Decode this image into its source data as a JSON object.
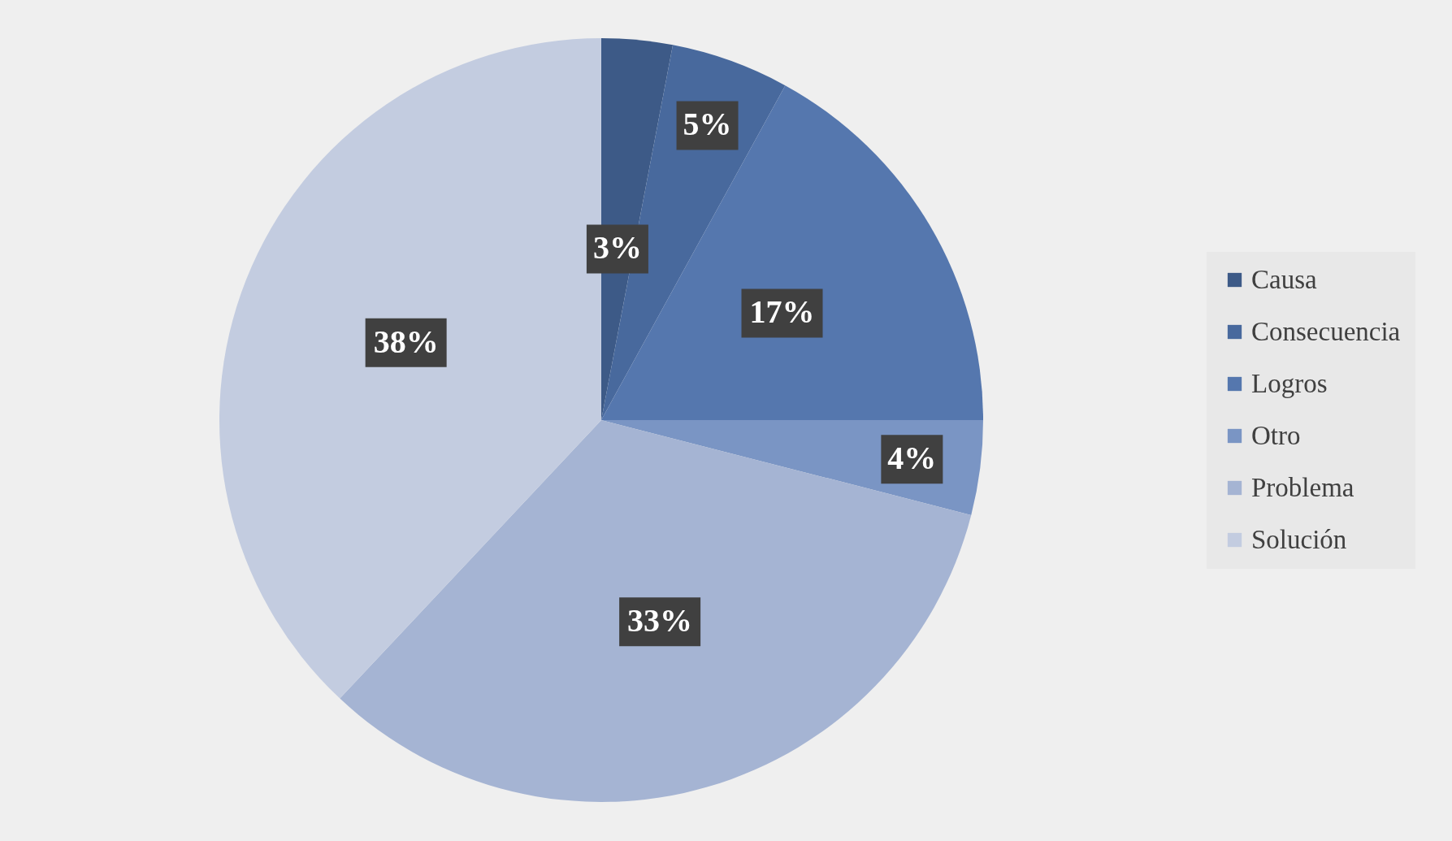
{
  "chart_data": {
    "type": "pie",
    "categories": [
      "Causa",
      "Consecuencia",
      "Logros",
      "Otro",
      "Problema",
      "Solución"
    ],
    "values": [
      3,
      5,
      17,
      4,
      33,
      38
    ],
    "value_labels": [
      "3%",
      "5%",
      "17%",
      "4%",
      "33%",
      "38%"
    ],
    "colors": [
      "#3d5a87",
      "#48699d",
      "#5577ae",
      "#7a95c4",
      "#a5b4d3",
      "#c3cce0"
    ],
    "legend": "right"
  }
}
